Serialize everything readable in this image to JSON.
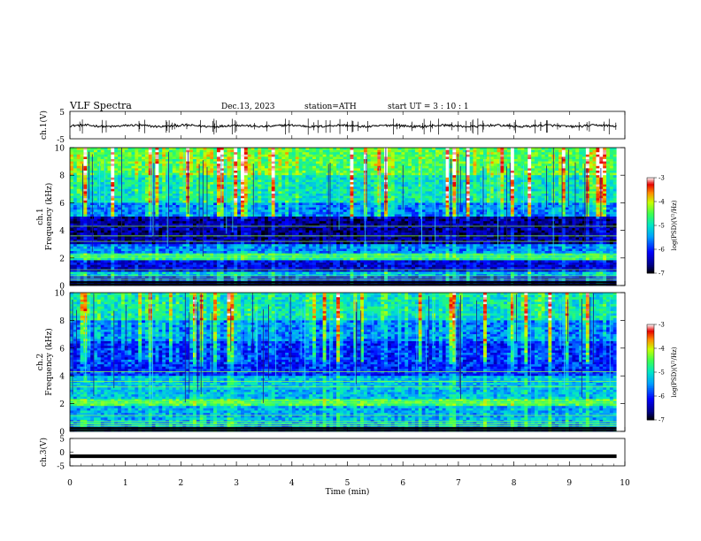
{
  "header": {
    "title": "VLF  Spectra",
    "date": "Dec.13, 2023",
    "station": "station=ATH",
    "start_ut": "start  UT  =   3  : 10 : 1"
  },
  "colors": {
    "colormap": [
      "#000080",
      "#0000ff",
      "#00c8ff",
      "#00ff80",
      "#c8ff00",
      "#ff8000",
      "#ff0000",
      "#ffffff"
    ],
    "waveform": "#000000"
  },
  "chart_data": [
    {
      "type": "line",
      "panel": "ch1-waveform",
      "ylabel": "ch.1(V)",
      "ylim": [
        -5,
        5
      ],
      "yticks": [
        "5",
        "-5"
      ],
      "xlim": [
        0,
        10
      ],
      "series": [
        {
          "values_description_baseline": -0.3,
          "spike_amplitude": 2.0
        }
      ]
    },
    {
      "type": "heatmap",
      "panel": "ch1-spectrogram",
      "ylabel": "ch.1\nFrequency  (kHz)",
      "ylabel_line1": "ch.1",
      "ylabel_line2": "Frequency  (kHz)",
      "ylim": [
        0,
        10
      ],
      "yticks": [
        "0",
        "2",
        "4",
        "6",
        "8",
        "10"
      ],
      "xlim": [
        0,
        10
      ],
      "colorbar": {
        "label": "log(PSD)(V²/Hz)",
        "range": [
          -7,
          -3
        ],
        "ticks": [
          "-3",
          "-4",
          "-5",
          "-6",
          "-7"
        ]
      },
      "bands": [
        {
          "from": 0.0,
          "to": 0.7,
          "level": -6.2
        },
        {
          "from": 0.7,
          "to": 1.0,
          "level": -5.3
        },
        {
          "from": 1.0,
          "to": 1.9,
          "level": -6.3
        },
        {
          "from": 1.9,
          "to": 2.4,
          "level": -4.8
        },
        {
          "from": 2.4,
          "to": 3.0,
          "level": -5.6
        },
        {
          "from": 3.0,
          "to": 5.0,
          "level": -6.6
        },
        {
          "from": 5.0,
          "to": 6.0,
          "level": -5.6
        },
        {
          "from": 6.0,
          "to": 8.0,
          "level": -5.0
        },
        {
          "from": 8.0,
          "to": 10.0,
          "level": -4.5
        }
      ]
    },
    {
      "type": "heatmap",
      "panel": "ch2-spectrogram",
      "ylabel_line1": "ch.2",
      "ylabel_line2": "Frequency  (kHz)",
      "ylim": [
        0,
        10
      ],
      "yticks": [
        "0",
        "2",
        "4",
        "6",
        "8",
        "10"
      ],
      "xlim": [
        0,
        10
      ],
      "colorbar": {
        "label": "log(PSD)(V²/Hz)",
        "range": [
          -7,
          -3
        ],
        "ticks": [
          "-3",
          "-4",
          "-5",
          "-6",
          "-7"
        ]
      },
      "bands": [
        {
          "from": 0.0,
          "to": 0.5,
          "level": -5.5
        },
        {
          "from": 0.5,
          "to": 1.8,
          "level": -5.4
        },
        {
          "from": 1.8,
          "to": 2.3,
          "level": -4.6
        },
        {
          "from": 2.3,
          "to": 4.0,
          "level": -5.3
        },
        {
          "from": 4.0,
          "to": 6.5,
          "level": -6.0
        },
        {
          "from": 6.5,
          "to": 8.0,
          "level": -5.6
        },
        {
          "from": 8.0,
          "to": 10.0,
          "level": -5.0
        }
      ]
    },
    {
      "type": "line",
      "panel": "ch3-waveform",
      "ylabel": "ch.3(V)",
      "ylim": [
        -5,
        5
      ],
      "yticks": [
        "5",
        "0",
        "-5"
      ],
      "xlim": [
        0,
        10
      ],
      "xlabel": "Time  (min)",
      "xticks": [
        "0",
        "1",
        "2",
        "3",
        "4",
        "5",
        "6",
        "7",
        "8",
        "9",
        "10"
      ],
      "series": [
        {
          "constant_value": -1.5
        }
      ]
    }
  ]
}
